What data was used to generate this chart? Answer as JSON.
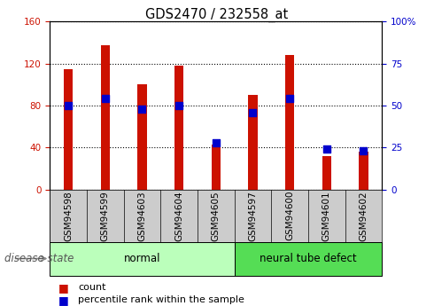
{
  "title": "GDS2470 / 232558_at",
  "samples": [
    "GSM94598",
    "GSM94599",
    "GSM94603",
    "GSM94604",
    "GSM94605",
    "GSM94597",
    "GSM94600",
    "GSM94601",
    "GSM94602"
  ],
  "counts": [
    115,
    137,
    100,
    118,
    43,
    90,
    128,
    32,
    36
  ],
  "percentiles": [
    50,
    54,
    48,
    50,
    28,
    46,
    54,
    24,
    23
  ],
  "groups": [
    {
      "label": "normal",
      "start": 0,
      "end": 5,
      "color": "#bbffbb"
    },
    {
      "label": "neural tube defect",
      "start": 5,
      "end": 9,
      "color": "#55dd55"
    }
  ],
  "bar_color": "#cc1100",
  "dot_color": "#0000cc",
  "left_ylim": [
    0,
    160
  ],
  "right_ylim": [
    0,
    100
  ],
  "left_yticks": [
    0,
    40,
    80,
    120,
    160
  ],
  "right_yticks": [
    0,
    25,
    50,
    75,
    100
  ],
  "right_yticklabels": [
    "0",
    "25",
    "50",
    "75",
    "100%"
  ],
  "bar_width": 0.25,
  "dot_size": 30,
  "tick_label_fontsize": 7.5,
  "title_fontsize": 10.5,
  "legend_fontsize": 8,
  "group_label_fontsize": 8.5,
  "disease_state_fontsize": 8.5,
  "grid_color": "black",
  "grid_linestyle": "dotted",
  "grid_linewidth": 0.8,
  "left_tick_color": "#cc1100",
  "right_tick_color": "#0000cc",
  "background_color": "#ffffff",
  "plot_bg_color": "#ffffff",
  "tick_bg_color": "#cccccc"
}
